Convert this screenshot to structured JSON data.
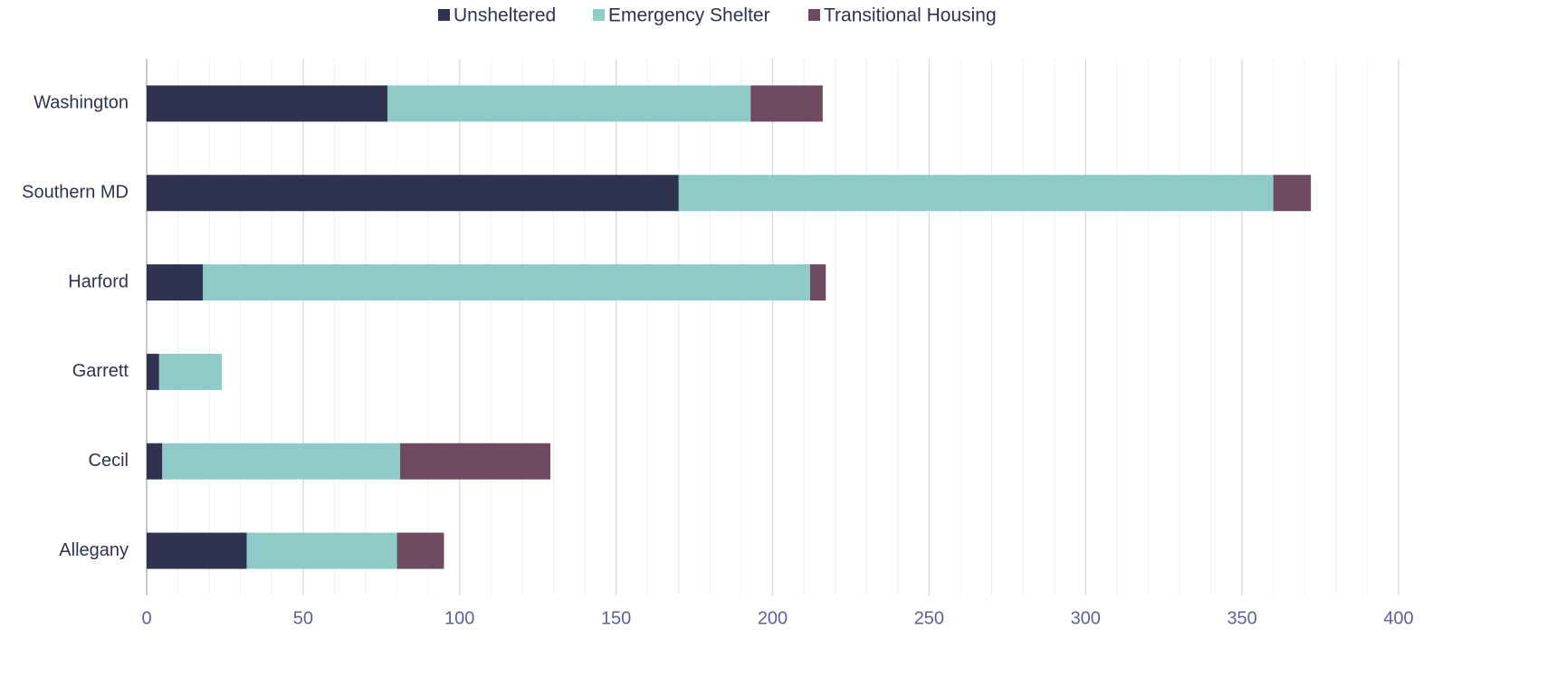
{
  "chart_data": {
    "type": "stacked_bar_horizontal",
    "categories": [
      "Washington",
      "Southern MD",
      "Harford",
      "Garrett",
      "Cecil",
      "Allegany"
    ],
    "series": [
      {
        "name": "Unsheltered",
        "color": "#2f3350",
        "values": [
          77,
          170,
          18,
          4,
          5,
          32
        ]
      },
      {
        "name": "Emergency Shelter",
        "color": "#8ecbc8",
        "values": [
          116,
          190,
          194,
          20,
          76,
          48
        ]
      },
      {
        "name": "Transitional Housing",
        "color": "#6e4a60",
        "values": [
          23,
          12,
          5,
          0,
          48,
          15
        ]
      }
    ],
    "xlim": [
      0,
      400
    ],
    "xticks": [
      0,
      50,
      100,
      150,
      200,
      250,
      300,
      350,
      400
    ],
    "xminorticks": [
      10,
      20,
      30,
      40,
      60,
      70,
      80,
      90,
      110,
      120,
      130,
      140,
      160,
      170,
      180,
      190,
      210,
      220,
      230,
      240,
      260,
      270,
      280,
      290,
      310,
      320,
      330,
      340,
      360,
      370,
      380,
      390
    ],
    "grid": true,
    "legend": "top"
  }
}
